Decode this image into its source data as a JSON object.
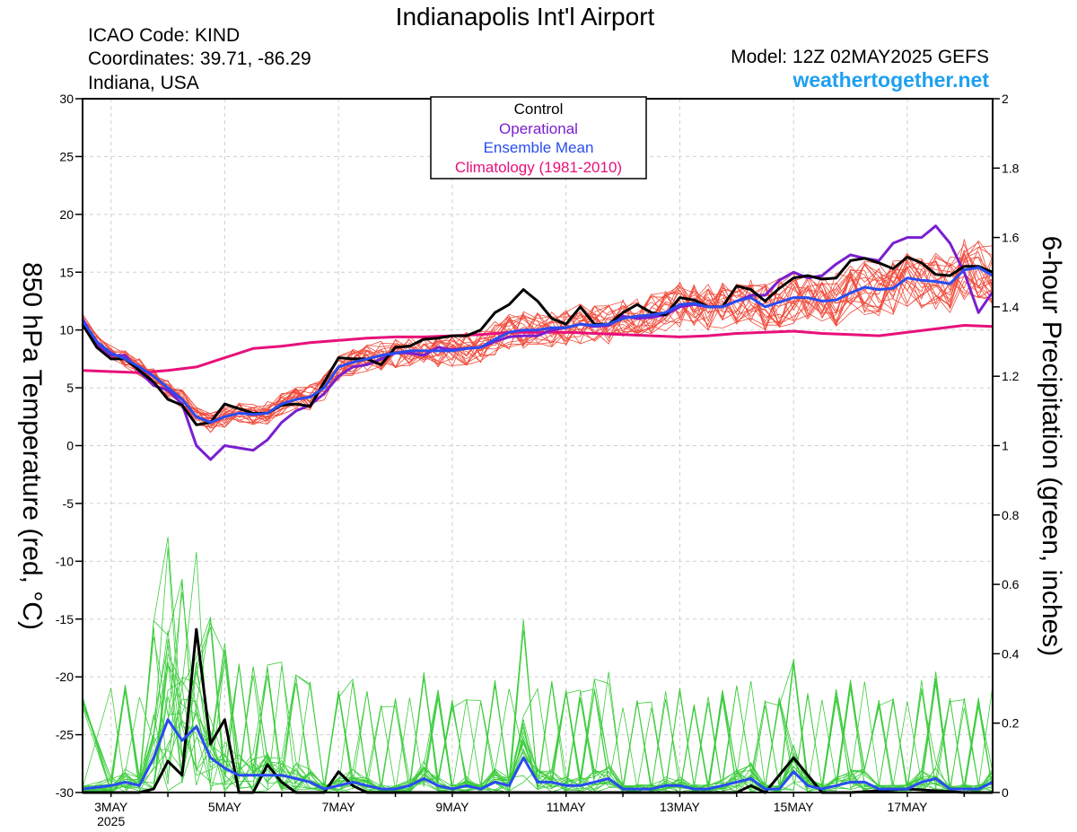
{
  "header": {
    "title": "Indianapolis Int'l Airport",
    "icao": "ICAO Code: KIND",
    "coords": "Coordinates: 39.71, -86.29",
    "region": "Indiana, USA",
    "model": "Model: 12Z 02MAY2025 GEFS",
    "brand": "weathertogether.net"
  },
  "legend": {
    "control": "Control",
    "operational": "Operational",
    "mean": "Ensemble Mean",
    "clim": "Climatology (1981-2010)"
  },
  "colors": {
    "control": "#000000",
    "operational": "#7a1fd0",
    "mean": "#2a4cf0",
    "clim": "#e8107a",
    "members_temp": "#f04a3a",
    "members_precip": "#3ccc3c",
    "brand": "#1ea0f0",
    "grid": "#d0d0d0"
  },
  "chart_data": {
    "type": "line",
    "ylabel": "850 hPa Temperature (red, °C)",
    "y2label": "6-hour Precipitation (green, inches)",
    "ylim": [
      -30,
      30
    ],
    "y2lim": [
      0,
      2
    ],
    "yticks": [
      "30",
      "25",
      "20",
      "15",
      "10",
      "5",
      "0",
      "-5",
      "-10",
      "-15",
      "-20",
      "-25",
      "-30"
    ],
    "y2ticks": [
      "2",
      "1.8",
      "1.6",
      "1.4",
      "1.2",
      "1",
      "0.8",
      "0.6",
      "0.4",
      "0.2",
      "0"
    ],
    "xlim_days": [
      2.5,
      18.5
    ],
    "xticks": [
      {
        "day": 3,
        "label": "3MAY"
      },
      {
        "day": 5,
        "label": "5MAY"
      },
      {
        "day": 7,
        "label": "7MAY"
      },
      {
        "day": 9,
        "label": "9MAY"
      },
      {
        "day": 11,
        "label": "11MAY"
      },
      {
        "day": 13,
        "label": "13MAY"
      },
      {
        "day": 15,
        "label": "15MAY"
      },
      {
        "day": 17,
        "label": "17MAY"
      }
    ],
    "year_label": "2025",
    "grid": true,
    "series": [
      {
        "name": "Control",
        "axis": "temp",
        "x": [
          2.5,
          2.75,
          3,
          3.25,
          3.5,
          3.75,
          4,
          4.25,
          4.5,
          4.75,
          5,
          5.25,
          5.5,
          5.75,
          6,
          6.25,
          6.5,
          6.75,
          7,
          7.25,
          7.5,
          7.75,
          8,
          8.25,
          8.5,
          8.75,
          9,
          9.25,
          9.5,
          9.75,
          10,
          10.25,
          10.5,
          10.75,
          11,
          11.25,
          11.5,
          11.75,
          12,
          12.25,
          12.5,
          12.75,
          13,
          13.25,
          13.5,
          13.75,
          14,
          14.25,
          14.5,
          14.75,
          15,
          15.25,
          15.5,
          15.75,
          16,
          16.25,
          16.5,
          16.75,
          17,
          17.25,
          17.5,
          17.75,
          18,
          18.25,
          18.5
        ],
        "y": [
          10.5,
          8.5,
          7.5,
          7.5,
          6.5,
          5.5,
          4,
          3.5,
          1.8,
          2,
          3.6,
          3.2,
          2.8,
          2.8,
          3.5,
          3.6,
          3.4,
          5.5,
          7.6,
          7.5,
          7.5,
          7,
          8.5,
          8.6,
          9.2,
          9.3,
          9.5,
          9.5,
          10,
          11.5,
          12.2,
          13.5,
          12.5,
          11,
          10.5,
          12,
          10.5,
          10.5,
          11.5,
          12.2,
          11.5,
          11.3,
          12.8,
          12.6,
          12,
          12,
          13.8,
          13.5,
          12.5,
          13.6,
          14.5,
          14.7,
          14.4,
          14.5,
          16,
          16.2,
          15.8,
          15.3,
          16.3,
          15.8,
          14.8,
          14.7,
          15.5,
          15.5,
          15
        ]
      },
      {
        "name": "Operational",
        "axis": "temp",
        "x": [
          2.5,
          2.75,
          3,
          3.25,
          3.5,
          3.75,
          4,
          4.25,
          4.5,
          4.75,
          5,
          5.25,
          5.5,
          5.75,
          6,
          6.25,
          6.5,
          6.75,
          7,
          7.25,
          7.5,
          7.75,
          8,
          8.25,
          8.5,
          8.75,
          9,
          9.25,
          9.5,
          9.75,
          10,
          10.25,
          10.5,
          10.75,
          11,
          11.25,
          11.5,
          11.75,
          12,
          12.25,
          12.5,
          12.75,
          13,
          13.25,
          13.5,
          13.75,
          14,
          14.25,
          14.5,
          14.75,
          15,
          15.25,
          15.5,
          15.75,
          16,
          16.25,
          16.5,
          16.75,
          17,
          17.25,
          17.5,
          17.75,
          18,
          18.25,
          18.5
        ],
        "y": [
          11,
          8.8,
          7.8,
          7.8,
          6.4,
          5.2,
          4.8,
          3.6,
          0,
          -1.2,
          0,
          -0.2,
          -0.4,
          0.5,
          2,
          3,
          3.5,
          4.5,
          6,
          6.8,
          7,
          7.5,
          8,
          8,
          7.8,
          8.5,
          8.3,
          8.4,
          8.5,
          9,
          9.4,
          9.5,
          9.5,
          10,
          10.2,
          10.5,
          10.3,
          10.4,
          11.2,
          11,
          11.1,
          11.3,
          12,
          12.2,
          12,
          12,
          12.5,
          13,
          13,
          14.3,
          15,
          14.5,
          14.7,
          15.7,
          16.5,
          16.2,
          16,
          17.5,
          18,
          18,
          19,
          17.5,
          15,
          11.5,
          13.3
        ]
      },
      {
        "name": "Ensemble Mean",
        "axis": "temp",
        "x": [
          2.5,
          2.75,
          3,
          3.25,
          3.5,
          3.75,
          4,
          4.25,
          4.5,
          4.75,
          5,
          5.25,
          5.5,
          5.75,
          6,
          6.25,
          6.5,
          6.75,
          7,
          7.25,
          7.5,
          7.75,
          8,
          8.25,
          8.5,
          8.75,
          9,
          9.25,
          9.5,
          9.75,
          10,
          10.25,
          10.5,
          10.75,
          11,
          11.25,
          11.5,
          11.75,
          12,
          12.25,
          12.5,
          12.75,
          13,
          13.25,
          13.5,
          13.75,
          14,
          14.25,
          14.5,
          14.75,
          15,
          15.25,
          15.5,
          15.75,
          16,
          16.25,
          16.5,
          16.75,
          17,
          17.25,
          17.5,
          17.75,
          18,
          18.25,
          18.5
        ],
        "y": [
          10.8,
          9,
          8,
          7.5,
          6.8,
          6,
          5,
          4,
          2.5,
          2,
          2.5,
          2.8,
          2.7,
          2.8,
          3.6,
          4,
          4.2,
          5,
          6.8,
          7.2,
          7.5,
          7.8,
          8,
          8.2,
          8.2,
          8.2,
          8.2,
          8.4,
          8.5,
          9.2,
          9.8,
          10,
          10,
          10.2,
          10.2,
          10.5,
          10.4,
          10.5,
          11,
          11.2,
          11.3,
          11.5,
          12.2,
          12.3,
          12,
          12,
          12.5,
          12.8,
          12,
          12.4,
          12.8,
          12.8,
          12.5,
          12.6,
          13.2,
          13.7,
          13.5,
          13.6,
          14.5,
          14.3,
          14.2,
          14,
          15.2,
          15.4,
          14.7
        ]
      },
      {
        "name": "Climatology (1981-2010)",
        "axis": "temp",
        "x": [
          2.5,
          3,
          3.5,
          4,
          4.5,
          5,
          5.5,
          6,
          6.5,
          7,
          7.5,
          8,
          8.5,
          9,
          9.5,
          10,
          10.5,
          11,
          11.5,
          12,
          12.5,
          13,
          13.5,
          14,
          14.5,
          15,
          15.5,
          16,
          16.5,
          17,
          17.5,
          18,
          18.5
        ],
        "y": [
          6.5,
          6.4,
          6.3,
          6.5,
          6.8,
          7.6,
          8.4,
          8.6,
          8.9,
          9.1,
          9.3,
          9.4,
          9.4,
          9.5,
          9.6,
          9.8,
          9.8,
          9.8,
          9.7,
          9.6,
          9.5,
          9.4,
          9.5,
          9.7,
          9.8,
          9.9,
          9.7,
          9.6,
          9.5,
          9.8,
          10.1,
          10.4,
          10.3
        ]
      },
      {
        "name": "Control",
        "axis": "precip",
        "x": [
          2.5,
          3,
          3.5,
          3.75,
          4,
          4.25,
          4.5,
          4.75,
          5,
          5.25,
          5.5,
          5.75,
          6,
          6.25,
          6.5,
          6.75,
          7,
          7.25,
          7.5,
          7.75,
          8,
          9,
          9.5,
          10,
          11,
          12,
          13,
          14,
          14.25,
          14.5,
          15,
          15.5,
          16,
          17,
          18,
          18.5
        ],
        "y": [
          0,
          0,
          0,
          0.01,
          0.09,
          0.05,
          0.47,
          0.14,
          0.21,
          0,
          0,
          0.08,
          0.03,
          0,
          0,
          0,
          0.06,
          0.02,
          0,
          0,
          0,
          0,
          0,
          0,
          0,
          0,
          0,
          0,
          0.02,
          0,
          0.1,
          0,
          0,
          0.01,
          0,
          0
        ]
      },
      {
        "name": "Ensemble Mean",
        "axis": "precip",
        "x": [
          2.5,
          3,
          3.25,
          3.5,
          3.75,
          4,
          4.25,
          4.5,
          4.75,
          5,
          5.25,
          5.5,
          5.75,
          6,
          6.25,
          6.5,
          6.75,
          7,
          7.25,
          7.5,
          7.75,
          8,
          8.25,
          8.5,
          8.75,
          9,
          9.25,
          9.5,
          9.75,
          10,
          10.25,
          10.5,
          10.75,
          11,
          11.25,
          11.5,
          11.75,
          12,
          12.25,
          12.5,
          12.75,
          13,
          13.25,
          13.5,
          13.75,
          14,
          14.25,
          14.5,
          14.75,
          15,
          15.25,
          15.5,
          15.75,
          16,
          16.25,
          16.5,
          16.75,
          17,
          17.25,
          17.5,
          17.75,
          18,
          18.25,
          18.5
        ],
        "y": [
          0.01,
          0.02,
          0.03,
          0.02,
          0.1,
          0.21,
          0.15,
          0.19,
          0.1,
          0.07,
          0.05,
          0.05,
          0.05,
          0.05,
          0.04,
          0.03,
          0.01,
          0.02,
          0.03,
          0.02,
          0.01,
          0.01,
          0.02,
          0.04,
          0.02,
          0.01,
          0.02,
          0.01,
          0.03,
          0.02,
          0.1,
          0.03,
          0.03,
          0.02,
          0.02,
          0.03,
          0.04,
          0.01,
          0.01,
          0.01,
          0.02,
          0.02,
          0.01,
          0.01,
          0.02,
          0.03,
          0.04,
          0.01,
          0.01,
          0.06,
          0.02,
          0.01,
          0.02,
          0.03,
          0.03,
          0.01,
          0.01,
          0.01,
          0.03,
          0.04,
          0.01,
          0.01,
          0.01,
          0.03
        ]
      }
    ]
  }
}
